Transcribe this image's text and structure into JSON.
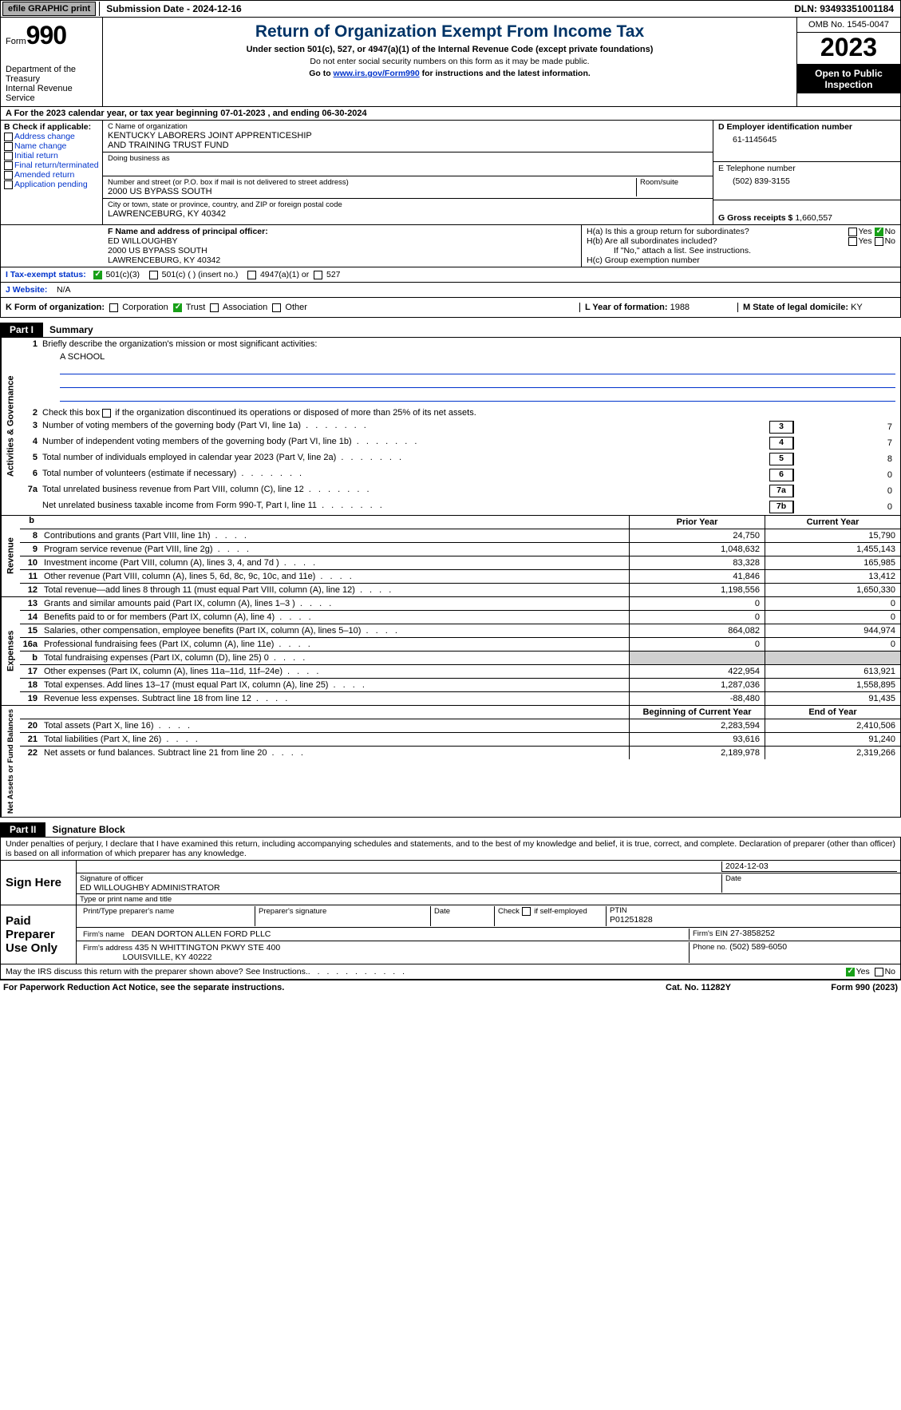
{
  "topbar": {
    "efile": "efile GRAPHIC print",
    "submission": "Submission Date - 2024-12-16",
    "dln": "DLN: 93493351001184"
  },
  "header": {
    "form_prefix": "Form",
    "form_no": "990",
    "title": "Return of Organization Exempt From Income Tax",
    "subtitle": "Under section 501(c), 527, or 4947(a)(1) of the Internal Revenue Code (except private foundations)",
    "ssn_note": "Do not enter social security numbers on this form as it may be made public.",
    "goto_prefix": "Go to ",
    "goto_link": "www.irs.gov/Form990",
    "goto_suffix": " for instructions and the latest information.",
    "dept": "Department of the Treasury",
    "irs": "Internal Revenue Service",
    "omb": "OMB No. 1545-0047",
    "year": "2023",
    "open": "Open to Public Inspection"
  },
  "row_a": "A   For the 2023 calendar year, or tax year beginning 07-01-2023    , and ending 06-30-2024",
  "section_b": {
    "hdr": "B Check if applicable:",
    "opts": [
      "Address change",
      "Name change",
      "Initial return",
      "Final return/terminated",
      "Amended return",
      "Application pending"
    ]
  },
  "section_c": {
    "name_lbl": "C Name of organization",
    "name1": "KENTUCKY LABORERS JOINT APPRENTICESHIP",
    "name2": "AND TRAINING TRUST FUND",
    "dba_lbl": "Doing business as",
    "addr_lbl": "Number and street (or P.O. box if mail is not delivered to street address)",
    "room_lbl": "Room/suite",
    "addr": "2000 US BYPASS SOUTH",
    "city_lbl": "City or town, state or province, country, and ZIP or foreign postal code",
    "city": "LAWRENCEBURG, KY  40342"
  },
  "section_de": {
    "d_lbl": "D Employer identification number",
    "d_val": "61-1145645",
    "e_lbl": "E Telephone number",
    "e_val": "(502) 839-3155",
    "g_lbl": "G Gross receipts $",
    "g_val": "1,660,557"
  },
  "section_f": {
    "lbl": "F  Name and address of principal officer:",
    "name": "ED WILLOUGHBY",
    "addr1": "2000 US BYPASS SOUTH",
    "addr2": "LAWRENCEBURG, KY  40342"
  },
  "section_h": {
    "ha": "H(a)  Is this a group return for subordinates?",
    "hb": "H(b)  Are all subordinates included?",
    "hb_note": "If \"No,\" attach a list. See instructions.",
    "hc": "H(c)  Group exemption number",
    "yes": "Yes",
    "no": "No"
  },
  "row_i": {
    "lbl": "I    Tax-exempt status:",
    "o1": "501(c)(3)",
    "o2": "501(c) (  ) (insert no.)",
    "o3": "4947(a)(1) or",
    "o4": "527"
  },
  "row_j": {
    "lbl": "J   Website:",
    "val": "N/A"
  },
  "row_k": {
    "lbl": "K Form of organization:",
    "o1": "Corporation",
    "o2": "Trust",
    "o3": "Association",
    "o4": "Other",
    "l_lbl": "L Year of formation:",
    "l_val": "1988",
    "m_lbl": "M State of legal domicile:",
    "m_val": "KY"
  },
  "part1": {
    "tag": "Part I",
    "title": "Summary",
    "vtab1": "Activities & Governance",
    "vtab2": "Revenue",
    "vtab3": "Expenses",
    "vtab4": "Net Assets or Fund Balances",
    "l1": "Briefly describe the organization's mission or most significant activities:",
    "l1_val": "A SCHOOL",
    "l2": "Check this box        if the organization discontinued its operations or disposed of more than 25% of its net assets.",
    "rows_gov": [
      {
        "n": "3",
        "t": "Number of voting members of the governing body (Part VI, line 1a)",
        "box": "3",
        "v": "7"
      },
      {
        "n": "4",
        "t": "Number of independent voting members of the governing body (Part VI, line 1b)",
        "box": "4",
        "v": "7"
      },
      {
        "n": "5",
        "t": "Total number of individuals employed in calendar year 2023 (Part V, line 2a)",
        "box": "5",
        "v": "8"
      },
      {
        "n": "6",
        "t": "Total number of volunteers (estimate if necessary)",
        "box": "6",
        "v": "0"
      },
      {
        "n": "7a",
        "t": "Total unrelated business revenue from Part VIII, column (C), line 12",
        "box": "7a",
        "v": "0"
      },
      {
        "n": "",
        "t": "Net unrelated business taxable income from Form 990-T, Part I, line 11",
        "box": "7b",
        "v": "0"
      }
    ],
    "col_prior": "Prior Year",
    "col_current": "Current Year",
    "col_begin": "Beginning of Current Year",
    "col_end": "End of Year",
    "rows_rev": [
      {
        "n": "8",
        "t": "Contributions and grants (Part VIII, line 1h)",
        "c1": "24,750",
        "c2": "15,790"
      },
      {
        "n": "9",
        "t": "Program service revenue (Part VIII, line 2g)",
        "c1": "1,048,632",
        "c2": "1,455,143"
      },
      {
        "n": "10",
        "t": "Investment income (Part VIII, column (A), lines 3, 4, and 7d )",
        "c1": "83,328",
        "c2": "165,985"
      },
      {
        "n": "11",
        "t": "Other revenue (Part VIII, column (A), lines 5, 6d, 8c, 9c, 10c, and 11e)",
        "c1": "41,846",
        "c2": "13,412"
      },
      {
        "n": "12",
        "t": "Total revenue—add lines 8 through 11 (must equal Part VIII, column (A), line 12)",
        "c1": "1,198,556",
        "c2": "1,650,330"
      }
    ],
    "rows_exp": [
      {
        "n": "13",
        "t": "Grants and similar amounts paid (Part IX, column (A), lines 1–3 )",
        "c1": "0",
        "c2": "0"
      },
      {
        "n": "14",
        "t": "Benefits paid to or for members (Part IX, column (A), line 4)",
        "c1": "0",
        "c2": "0"
      },
      {
        "n": "15",
        "t": "Salaries, other compensation, employee benefits (Part IX, column (A), lines 5–10)",
        "c1": "864,082",
        "c2": "944,974"
      },
      {
        "n": "16a",
        "t": "Professional fundraising fees (Part IX, column (A), line 11e)",
        "c1": "0",
        "c2": "0"
      },
      {
        "n": "b",
        "t": "Total fundraising expenses (Part IX, column (D), line 25) 0",
        "c1": "",
        "c2": "",
        "grey": true
      },
      {
        "n": "17",
        "t": "Other expenses (Part IX, column (A), lines 11a–11d, 11f–24e)",
        "c1": "422,954",
        "c2": "613,921"
      },
      {
        "n": "18",
        "t": "Total expenses. Add lines 13–17 (must equal Part IX, column (A), line 25)",
        "c1": "1,287,036",
        "c2": "1,558,895"
      },
      {
        "n": "19",
        "t": "Revenue less expenses. Subtract line 18 from line 12",
        "c1": "-88,480",
        "c2": "91,435"
      }
    ],
    "rows_net": [
      {
        "n": "20",
        "t": "Total assets (Part X, line 16)",
        "c1": "2,283,594",
        "c2": "2,410,506"
      },
      {
        "n": "21",
        "t": "Total liabilities (Part X, line 26)",
        "c1": "93,616",
        "c2": "91,240"
      },
      {
        "n": "22",
        "t": "Net assets or fund balances. Subtract line 21 from line 20",
        "c1": "2,189,978",
        "c2": "2,319,266"
      }
    ]
  },
  "part2": {
    "tag": "Part II",
    "title": "Signature Block",
    "decl": "Under penalties of perjury, I declare that I have examined this return, including accompanying schedules and statements, and to the best of my knowledge and belief, it is true, correct, and complete. Declaration of preparer (other than officer) is based on all information of which preparer has any knowledge.",
    "sign_here": "Sign Here",
    "paid_prep": "Paid Preparer Use Only",
    "sig_officer_lbl": "Signature of officer",
    "sig_officer": "ED WILLOUGHBY ADMINISTRATOR",
    "sig_type_lbl": "Type or print name and title",
    "date_lbl": "Date",
    "sig_date": "2024-12-03",
    "prep_name_lbl": "Print/Type preparer's name",
    "prep_sig_lbl": "Preparer's signature",
    "check_self": "Check         if self-employed",
    "ptin_lbl": "PTIN",
    "ptin": "P01251828",
    "firm_name_lbl": "Firm's name",
    "firm_name": "DEAN DORTON ALLEN FORD PLLC",
    "firm_ein_lbl": "Firm's EIN",
    "firm_ein": "27-3858252",
    "firm_addr_lbl": "Firm's address",
    "firm_addr1": "435 N WHITTINGTON PKWY STE 400",
    "firm_addr2": "LOUISVILLE, KY  40222",
    "phone_lbl": "Phone no.",
    "phone": "(502) 589-6050",
    "may_irs": "May the IRS discuss this return with the preparer shown above? See Instructions."
  },
  "footer": {
    "pra": "For Paperwork Reduction Act Notice, see the separate instructions.",
    "cat": "Cat. No. 11282Y",
    "form": "Form 990 (2023)"
  }
}
